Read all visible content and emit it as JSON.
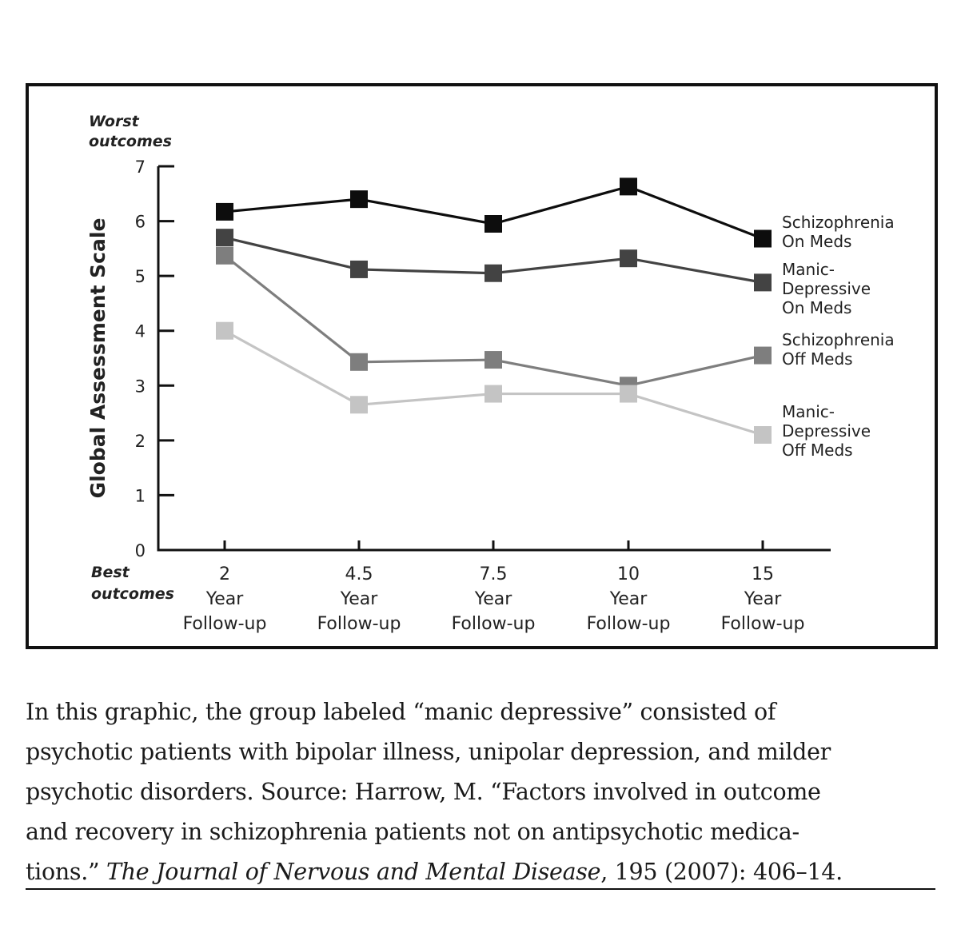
{
  "chart_data": {
    "type": "line",
    "ylabel": "Global Assessment Scale",
    "ylim": [
      0,
      7
    ],
    "yticks": [
      "0",
      "1",
      "2",
      "3",
      "4",
      "5",
      "6",
      "7"
    ],
    "y_top_label": [
      "Worst",
      "outcomes"
    ],
    "y_bottom_label": [
      "Best",
      "outcomes"
    ],
    "categories": [
      [
        "2",
        "Year",
        "Follow-up"
      ],
      [
        "4.5",
        "Year",
        "Follow-up"
      ],
      [
        "7.5",
        "Year",
        "Follow-up"
      ],
      [
        "10",
        "Year",
        "Follow-up"
      ],
      [
        "15",
        "Year",
        "Follow-up"
      ]
    ],
    "series": [
      {
        "name": [
          "Schizophrenia",
          "On Meds"
        ],
        "color": "#0d0d0d",
        "values": [
          6.17,
          6.4,
          5.95,
          6.63,
          5.68
        ]
      },
      {
        "name": [
          "Manic-",
          "Depressive",
          "On Meds"
        ],
        "color": "#434343",
        "values": [
          5.7,
          5.12,
          5.05,
          5.32,
          4.88
        ]
      },
      {
        "name": [
          "Schizophrenia",
          "Off Meds"
        ],
        "color": "#7e7e7e",
        "values": [
          5.37,
          3.43,
          3.47,
          3.0,
          3.55
        ]
      },
      {
        "name": [
          "Manic-",
          "Depressive",
          "Off Meds"
        ],
        "color": "#c4c4c4",
        "values": [
          4.0,
          2.65,
          2.85,
          2.85,
          2.1
        ]
      }
    ],
    "legend": "right"
  },
  "caption": {
    "lines": [
      "In this graphic, the group labeled “manic depressive” consisted of",
      "psychotic patients with bipolar illness, unipolar depression, and milder",
      "psychotic disorders. Source: Harrow, M. “Factors involved in outcome",
      "and recovery in schizophrenia patients not on antipsychotic medica-"
    ],
    "last_prefix": "tions.” ",
    "journal": "The Journal of Nervous and Mental Disease",
    "last_suffix": ", 195 (2007): 406–14."
  }
}
